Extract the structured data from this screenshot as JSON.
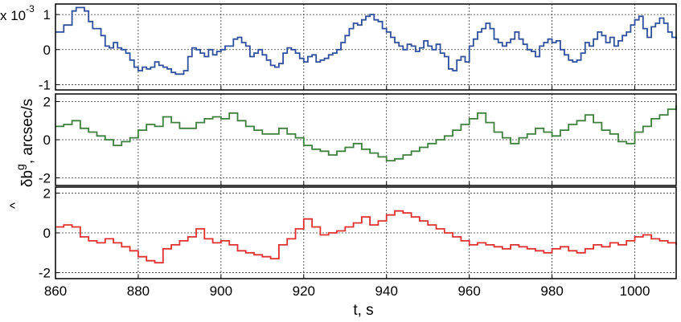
{
  "chart_data": {
    "type": "line",
    "xlabel": "t, s",
    "ylabel": "δb^g, arcsec/s",
    "ylabel_parts": {
      "hat": "^",
      "main": "δb",
      "sup": "g",
      "rest": ", arcsec/s"
    },
    "x_ticks": [
      "860",
      "880",
      "900",
      "920",
      "940",
      "960",
      "980",
      "1000"
    ],
    "xlim": [
      860,
      1010
    ],
    "grid": true,
    "panels": [
      {
        "name": "top",
        "multiplier": "x 10-3",
        "multiplier_parts": {
          "base": "x 10",
          "exp": "-3"
        },
        "ylim": [
          -1.15,
          1.3
        ],
        "y_ticks": [
          -1,
          0,
          1
        ],
        "y_tick_labels": [
          "-1",
          "0",
          "1"
        ],
        "color": "#2f4f9c",
        "x": [
          860,
          862,
          864,
          865,
          866,
          867,
          868,
          869,
          870,
          871,
          872,
          873,
          874,
          875,
          876,
          877,
          878,
          879,
          880,
          881,
          882,
          883,
          884,
          885,
          886,
          887,
          888,
          889,
          890,
          891,
          892,
          893,
          894,
          895,
          896,
          897,
          898,
          899,
          900,
          901,
          902,
          903,
          904,
          905,
          906,
          907,
          908,
          909,
          910,
          911,
          912,
          913,
          914,
          915,
          916,
          917,
          918,
          919,
          920,
          921,
          922,
          923,
          924,
          925,
          926,
          927,
          928,
          929,
          930,
          931,
          932,
          933,
          934,
          935,
          936,
          937,
          938,
          939,
          940,
          941,
          942,
          943,
          944,
          945,
          946,
          947,
          948,
          949,
          950,
          951,
          952,
          953,
          954,
          955,
          956,
          957,
          958,
          959,
          960,
          961,
          962,
          963,
          964,
          965,
          966,
          967,
          968,
          969,
          970,
          971,
          972,
          973,
          974,
          975,
          976,
          977,
          978,
          979,
          980,
          981,
          982,
          983,
          984,
          985,
          986,
          987,
          988,
          989,
          990,
          991,
          992,
          993,
          994,
          995,
          996,
          997,
          998,
          999,
          1000,
          1001,
          1002,
          1003,
          1004,
          1005,
          1006,
          1007,
          1008,
          1009,
          1010
        ],
        "y": [
          0.5,
          0.7,
          1.1,
          1.2,
          1.2,
          1.1,
          0.8,
          0.6,
          0.6,
          0.4,
          0.1,
          0.05,
          0.2,
          0.05,
          0.0,
          -0.1,
          -0.3,
          -0.5,
          -0.6,
          -0.5,
          -0.55,
          -0.5,
          -0.35,
          -0.45,
          -0.5,
          -0.55,
          -0.65,
          -0.7,
          -0.7,
          -0.6,
          -0.2,
          0.05,
          0.0,
          -0.1,
          -0.2,
          0.0,
          -0.15,
          -0.05,
          0.0,
          0.1,
          0.1,
          0.3,
          0.35,
          0.2,
          0.1,
          -0.2,
          -0.1,
          0.0,
          -0.15,
          -0.3,
          -0.45,
          -0.5,
          -0.4,
          -0.1,
          0.05,
          0.0,
          -0.1,
          -0.25,
          -0.35,
          -0.2,
          -0.15,
          -0.35,
          -0.3,
          -0.25,
          -0.15,
          -0.1,
          0.0,
          0.2,
          0.4,
          0.6,
          0.75,
          0.7,
          0.85,
          0.95,
          1.0,
          0.85,
          0.8,
          0.6,
          0.5,
          0.35,
          0.2,
          0.1,
          0.0,
          0.15,
          0.1,
          -0.05,
          0.05,
          0.25,
          0.1,
          0.0,
          0.15,
          -0.1,
          -0.2,
          -0.55,
          -0.6,
          -0.3,
          -0.2,
          -0.35,
          0.1,
          0.3,
          0.5,
          0.6,
          0.75,
          0.6,
          0.3,
          0.2,
          0.1,
          0.2,
          0.3,
          0.5,
          0.3,
          0.15,
          0.0,
          -0.05,
          -0.2,
          0.1,
          0.2,
          0.3,
          0.2,
          0.25,
          0.0,
          -0.15,
          -0.3,
          -0.35,
          -0.3,
          -0.1,
          0.2,
          0.1,
          0.3,
          0.5,
          0.4,
          0.2,
          0.35,
          0.1,
          0.25,
          0.4,
          0.5,
          0.7,
          0.85,
          0.95,
          0.6,
          0.35,
          0.65,
          0.75,
          0.9,
          0.75,
          0.5,
          0.35,
          0.3
        ]
      },
      {
        "name": "middle",
        "ylim": [
          -2.4,
          2.4
        ],
        "y_ticks": [
          -2,
          0,
          2
        ],
        "y_tick_labels": [
          "-2",
          "0",
          "2"
        ],
        "color": "#3e7f3e",
        "x": [
          860,
          862,
          864,
          866,
          868,
          870,
          872,
          874,
          876,
          878,
          880,
          882,
          884,
          886,
          888,
          890,
          892,
          894,
          896,
          898,
          900,
          902,
          904,
          906,
          908,
          910,
          912,
          914,
          916,
          918,
          920,
          922,
          924,
          926,
          928,
          930,
          932,
          934,
          936,
          938,
          940,
          942,
          944,
          946,
          948,
          950,
          952,
          954,
          956,
          958,
          960,
          962,
          964,
          966,
          968,
          970,
          972,
          974,
          976,
          978,
          980,
          982,
          984,
          986,
          988,
          990,
          992,
          994,
          996,
          998,
          1000,
          1002,
          1004,
          1006,
          1008,
          1010
        ],
        "y": [
          0.7,
          0.8,
          1.0,
          0.6,
          0.4,
          0.2,
          0.0,
          -0.3,
          -0.1,
          0.1,
          0.5,
          0.8,
          0.7,
          1.2,
          0.9,
          0.6,
          0.6,
          0.9,
          1.1,
          1.2,
          1.1,
          1.4,
          1.0,
          0.7,
          0.5,
          0.3,
          0.3,
          0.6,
          0.3,
          0.1,
          -0.3,
          -0.5,
          -0.6,
          -0.8,
          -0.6,
          -0.4,
          -0.2,
          -0.5,
          -0.7,
          -0.9,
          -1.1,
          -1.0,
          -0.8,
          -0.6,
          -0.4,
          -0.2,
          0.0,
          0.2,
          0.5,
          0.8,
          1.1,
          1.4,
          0.9,
          0.4,
          0.1,
          -0.2,
          0.1,
          0.3,
          0.6,
          0.4,
          0.2,
          0.5,
          0.8,
          1.0,
          1.3,
          0.9,
          0.5,
          0.3,
          -0.1,
          -0.2,
          0.4,
          0.7,
          1.1,
          1.3,
          1.6,
          1.8
        ]
      },
      {
        "name": "bottom",
        "ylim": [
          -2.3,
          2.3
        ],
        "y_ticks": [
          -2,
          0,
          2
        ],
        "y_tick_labels": [
          "-2",
          "0",
          "2"
        ],
        "color": "#e03030",
        "x": [
          860,
          862,
          864,
          866,
          868,
          870,
          872,
          874,
          876,
          878,
          880,
          882,
          884,
          886,
          888,
          890,
          892,
          894,
          896,
          898,
          900,
          902,
          904,
          906,
          908,
          910,
          912,
          914,
          916,
          918,
          920,
          922,
          924,
          926,
          928,
          930,
          932,
          934,
          936,
          938,
          940,
          942,
          944,
          946,
          948,
          950,
          952,
          954,
          956,
          958,
          960,
          962,
          964,
          966,
          968,
          970,
          972,
          974,
          976,
          978,
          980,
          982,
          984,
          986,
          988,
          990,
          992,
          994,
          996,
          998,
          1000,
          1002,
          1004,
          1006,
          1008,
          1010
        ],
        "y": [
          0.3,
          0.4,
          0.3,
          -0.2,
          -0.4,
          -0.5,
          -0.3,
          -0.5,
          -0.7,
          -0.9,
          -1.2,
          -1.4,
          -1.5,
          -0.8,
          -0.6,
          -0.4,
          -0.2,
          0.2,
          -0.3,
          -0.5,
          -0.4,
          -0.6,
          -0.9,
          -1.0,
          -1.1,
          -1.2,
          -1.3,
          -0.6,
          -0.3,
          0.2,
          0.7,
          0.3,
          -0.1,
          0.0,
          0.1,
          0.3,
          0.5,
          0.8,
          0.4,
          0.6,
          0.9,
          1.1,
          1.0,
          0.8,
          0.6,
          0.4,
          0.2,
          0.0,
          -0.2,
          -0.4,
          -0.6,
          -0.5,
          -0.6,
          -0.7,
          -0.8,
          -0.6,
          -0.7,
          -0.8,
          -0.9,
          -1.0,
          -0.8,
          -0.7,
          -0.9,
          -1.0,
          -0.8,
          -0.6,
          -0.7,
          -0.5,
          -0.6,
          -0.4,
          -0.2,
          -0.1,
          -0.3,
          -0.4,
          -0.5,
          -0.6
        ]
      }
    ]
  }
}
